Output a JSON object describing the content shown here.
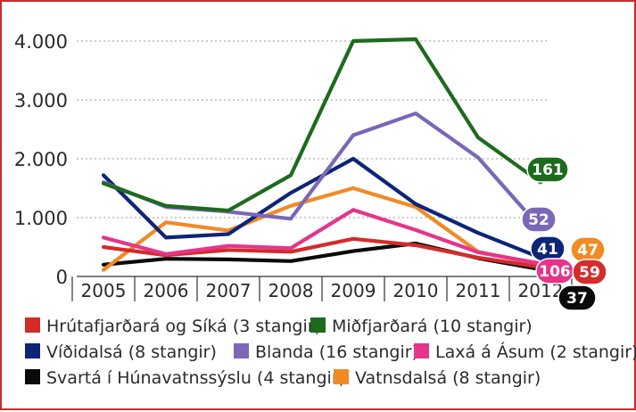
{
  "chart_data": {
    "type": "line",
    "title": "",
    "xlabel": "",
    "ylabel": "",
    "ylim": [
      0,
      4000
    ],
    "yticks": [
      0,
      1000,
      2000,
      3000,
      4000
    ],
    "ytick_labels": [
      "0",
      "1.000",
      "2.000",
      "3.000",
      "4.000"
    ],
    "categories": [
      "2005",
      "2006",
      "2007",
      "2008",
      "2009",
      "2010",
      "2011",
      "2012"
    ],
    "legend_position": "bottom",
    "series": [
      {
        "name": "Hrútafjarðará og Síká (3 stangir)",
        "color": "#d42b2b",
        "values": [
          500,
          360,
          450,
          420,
          640,
          530,
          320,
          160
        ],
        "badge": "59"
      },
      {
        "name": "Miðfjarðará (10 stangir)",
        "color": "#1e6b1e",
        "values": [
          1580,
          1200,
          1120,
          1720,
          4000,
          4030,
          2360,
          1600
        ],
        "badge": "161"
      },
      {
        "name": "Víðidalsá (8 stangir)",
        "color": "#0c2577",
        "values": [
          1720,
          660,
          720,
          1420,
          2000,
          1230,
          740,
          320
        ],
        "badge": "41"
      },
      {
        "name": "Blanda (16 stangir)",
        "color": "#7a67b8",
        "values": [
          1600,
          1180,
          1100,
          980,
          2400,
          2770,
          2020,
          820
        ],
        "badge": "52"
      },
      {
        "name": "Laxá á Ásum (2 stangir)",
        "color": "#e5358b",
        "values": [
          660,
          380,
          520,
          480,
          1130,
          790,
          410,
          220
        ],
        "badge": "106"
      },
      {
        "name": "Svartá í Húnavatnssýslu (4 stangir)",
        "color": "#0a0a0a",
        "values": [
          200,
          300,
          290,
          260,
          430,
          560,
          310,
          120
        ],
        "badge": "37"
      },
      {
        "name": "Vatnsdalsá (8 stangir)",
        "color": "#f28a24",
        "values": [
          110,
          920,
          780,
          1200,
          1500,
          1180,
          420,
          200
        ],
        "badge": "47"
      }
    ]
  }
}
